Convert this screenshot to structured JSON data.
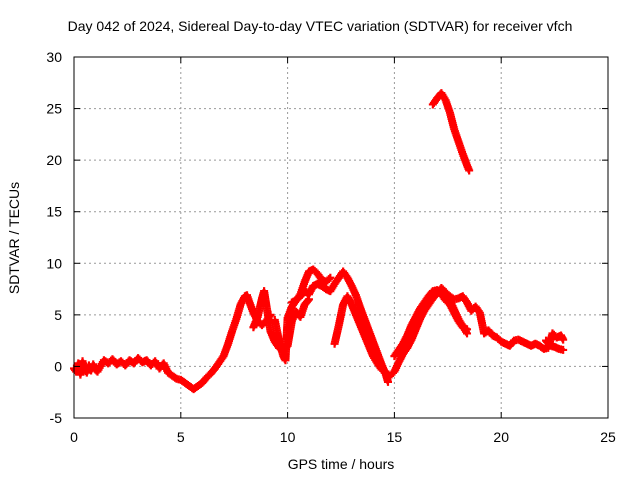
{
  "chart_data": {
    "type": "scatter",
    "title": "Day 042 of 2024, Sidereal Day-to-day VTEC variation (SDTVAR) for receiver vfch",
    "xlabel": "GPS time / hours",
    "ylabel": "SDTVAR / TECUs",
    "xlim": [
      0,
      25
    ],
    "ylim": [
      -5,
      30
    ],
    "xticks": [
      "0",
      "5",
      "10",
      "15",
      "20",
      "25"
    ],
    "yticks": [
      "-5",
      "0",
      "5",
      "10",
      "15",
      "20",
      "25",
      "30"
    ],
    "grid": true,
    "marker": "+",
    "color": "#ff0000",
    "series": [
      {
        "name": "SDTVAR",
        "points": [
          [
            0.0,
            -0.2
          ],
          [
            0.1,
            -0.5
          ],
          [
            0.2,
            0.3
          ],
          [
            0.3,
            -0.8
          ],
          [
            0.4,
            0.5
          ],
          [
            0.5,
            -0.3
          ],
          [
            0.6,
            -0.6
          ],
          [
            0.7,
            0.1
          ],
          [
            0.8,
            -0.4
          ],
          [
            0.9,
            0.2
          ],
          [
            1.0,
            -0.3
          ],
          [
            1.1,
            -0.5
          ],
          [
            1.4,
            0.6
          ],
          [
            1.6,
            0.3
          ],
          [
            1.8,
            0.7
          ],
          [
            2.0,
            0.2
          ],
          [
            2.2,
            0.5
          ],
          [
            2.4,
            0.1
          ],
          [
            2.6,
            0.6
          ],
          [
            2.8,
            0.3
          ],
          [
            3.0,
            0.8
          ],
          [
            3.2,
            0.4
          ],
          [
            3.4,
            0.6
          ],
          [
            3.6,
            0.1
          ],
          [
            3.8,
            0.5
          ],
          [
            4.0,
            -0.2
          ],
          [
            4.2,
            0.3
          ],
          [
            4.4,
            -0.6
          ],
          [
            4.6,
            -0.9
          ],
          [
            4.8,
            -1.2
          ],
          [
            5.0,
            -1.3
          ],
          [
            5.2,
            -1.6
          ],
          [
            5.4,
            -1.9
          ],
          [
            5.6,
            -2.2
          ],
          [
            5.8,
            -1.9
          ],
          [
            6.0,
            -1.6
          ],
          [
            6.2,
            -1.1
          ],
          [
            6.4,
            -0.7
          ],
          [
            6.6,
            -0.2
          ],
          [
            6.8,
            0.4
          ],
          [
            7.0,
            1.0
          ],
          [
            7.2,
            2.1
          ],
          [
            7.4,
            3.4
          ],
          [
            7.6,
            4.6
          ],
          [
            7.8,
            6.0
          ],
          [
            8.0,
            6.8
          ],
          [
            8.1,
            6.9
          ],
          [
            8.2,
            6.3
          ],
          [
            8.4,
            5.2
          ],
          [
            8.6,
            4.4
          ],
          [
            8.8,
            4.0
          ],
          [
            9.0,
            4.4
          ],
          [
            9.2,
            5.0
          ],
          [
            8.4,
            3.8
          ],
          [
            8.6,
            4.8
          ],
          [
            8.8,
            6.6
          ],
          [
            8.9,
            7.3
          ],
          [
            9.0,
            6.0
          ],
          [
            9.2,
            3.4
          ],
          [
            9.4,
            2.4
          ],
          [
            9.6,
            1.8
          ],
          [
            9.8,
            1.5
          ],
          [
            10.0,
            2.0
          ],
          [
            10.2,
            4.4
          ],
          [
            10.4,
            5.3
          ],
          [
            10.6,
            4.8
          ],
          [
            10.8,
            6.0
          ],
          [
            11.0,
            6.5
          ],
          [
            9.4,
            4.5
          ],
          [
            9.6,
            2.5
          ],
          [
            9.8,
            1.0
          ],
          [
            9.9,
            0.6
          ],
          [
            10.0,
            4.7
          ],
          [
            10.2,
            5.8
          ],
          [
            10.4,
            6.4
          ],
          [
            10.6,
            7.0
          ],
          [
            10.8,
            8.2
          ],
          [
            11.0,
            9.2
          ],
          [
            11.2,
            9.4
          ],
          [
            11.4,
            9.0
          ],
          [
            11.6,
            8.4
          ],
          [
            11.8,
            8.2
          ],
          [
            12.0,
            8.6
          ],
          [
            10.2,
            6.2
          ],
          [
            10.4,
            6.4
          ],
          [
            10.6,
            6.8
          ],
          [
            10.8,
            7.3
          ],
          [
            11.0,
            7.0
          ],
          [
            11.2,
            7.8
          ],
          [
            11.4,
            8.0
          ],
          [
            11.6,
            7.8
          ],
          [
            11.8,
            7.5
          ],
          [
            12.0,
            7.3
          ],
          [
            12.2,
            8.0
          ],
          [
            12.4,
            8.6
          ],
          [
            12.6,
            9.2
          ],
          [
            12.8,
            8.6
          ],
          [
            13.0,
            7.8
          ],
          [
            13.2,
            6.9
          ],
          [
            13.4,
            5.7
          ],
          [
            13.6,
            4.6
          ],
          [
            13.8,
            3.5
          ],
          [
            14.0,
            2.4
          ],
          [
            14.2,
            1.3
          ],
          [
            14.4,
            0.2
          ],
          [
            14.6,
            -0.8
          ],
          [
            14.7,
            -1.5
          ],
          [
            12.2,
            2.2
          ],
          [
            12.4,
            4.0
          ],
          [
            12.6,
            6.0
          ],
          [
            12.8,
            6.8
          ],
          [
            13.0,
            6.0
          ],
          [
            13.2,
            5.0
          ],
          [
            13.4,
            4.0
          ],
          [
            13.6,
            3.0
          ],
          [
            13.8,
            2.0
          ],
          [
            14.0,
            1.0
          ],
          [
            14.2,
            0.3
          ],
          [
            14.4,
            -0.3
          ],
          [
            14.8,
            -0.9
          ],
          [
            15.0,
            -0.5
          ],
          [
            15.2,
            0.4
          ],
          [
            15.4,
            1.2
          ],
          [
            15.6,
            1.8
          ],
          [
            15.8,
            2.6
          ],
          [
            16.0,
            3.6
          ],
          [
            16.2,
            4.6
          ],
          [
            16.4,
            5.4
          ],
          [
            16.6,
            6.0
          ],
          [
            16.8,
            6.6
          ],
          [
            17.0,
            7.1
          ],
          [
            17.2,
            7.6
          ],
          [
            17.4,
            7.2
          ],
          [
            17.6,
            6.4
          ],
          [
            17.8,
            5.5
          ],
          [
            18.0,
            4.6
          ],
          [
            18.2,
            3.9
          ],
          [
            18.4,
            3.2
          ],
          [
            15.0,
            1.0
          ],
          [
            15.2,
            1.6
          ],
          [
            15.4,
            2.2
          ],
          [
            15.6,
            3.0
          ],
          [
            15.8,
            4.0
          ],
          [
            16.0,
            4.8
          ],
          [
            16.2,
            5.6
          ],
          [
            16.4,
            6.2
          ],
          [
            16.6,
            6.8
          ],
          [
            16.8,
            7.3
          ],
          [
            17.0,
            7.4
          ],
          [
            17.2,
            7.0
          ],
          [
            17.4,
            6.4
          ],
          [
            17.6,
            6.0
          ],
          [
            17.8,
            5.2
          ],
          [
            18.0,
            4.4
          ],
          [
            18.2,
            3.8
          ],
          [
            18.4,
            3.6
          ],
          [
            17.6,
            6.8
          ],
          [
            17.8,
            6.5
          ],
          [
            18.0,
            6.6
          ],
          [
            18.2,
            6.8
          ],
          [
            18.4,
            6.2
          ],
          [
            18.6,
            5.4
          ],
          [
            18.8,
            5.8
          ],
          [
            19.0,
            5.2
          ],
          [
            19.2,
            3.2
          ],
          [
            19.4,
            3.5
          ],
          [
            19.6,
            3.0
          ],
          [
            19.8,
            2.8
          ],
          [
            20.0,
            2.4
          ],
          [
            20.2,
            2.2
          ],
          [
            20.4,
            2.0
          ],
          [
            20.6,
            2.5
          ],
          [
            20.8,
            2.6
          ],
          [
            21.0,
            2.4
          ],
          [
            21.2,
            2.2
          ],
          [
            21.4,
            2.0
          ],
          [
            21.6,
            2.2
          ],
          [
            21.8,
            2.0
          ],
          [
            22.0,
            1.7
          ],
          [
            22.2,
            1.8
          ],
          [
            22.4,
            3.2
          ],
          [
            22.6,
            2.8
          ],
          [
            22.8,
            3.0
          ],
          [
            22.9,
            2.6
          ],
          [
            22.1,
            2.5
          ],
          [
            22.3,
            2.0
          ],
          [
            22.5,
            1.9
          ],
          [
            22.7,
            1.7
          ],
          [
            22.9,
            1.6
          ],
          [
            16.8,
            25.4
          ],
          [
            17.0,
            26.0
          ],
          [
            17.2,
            26.5
          ],
          [
            17.4,
            25.8
          ],
          [
            17.6,
            24.6
          ],
          [
            17.8,
            23.0
          ],
          [
            18.0,
            21.8
          ],
          [
            18.2,
            20.6
          ],
          [
            18.4,
            19.5
          ],
          [
            18.5,
            19.0
          ]
        ]
      }
    ]
  }
}
